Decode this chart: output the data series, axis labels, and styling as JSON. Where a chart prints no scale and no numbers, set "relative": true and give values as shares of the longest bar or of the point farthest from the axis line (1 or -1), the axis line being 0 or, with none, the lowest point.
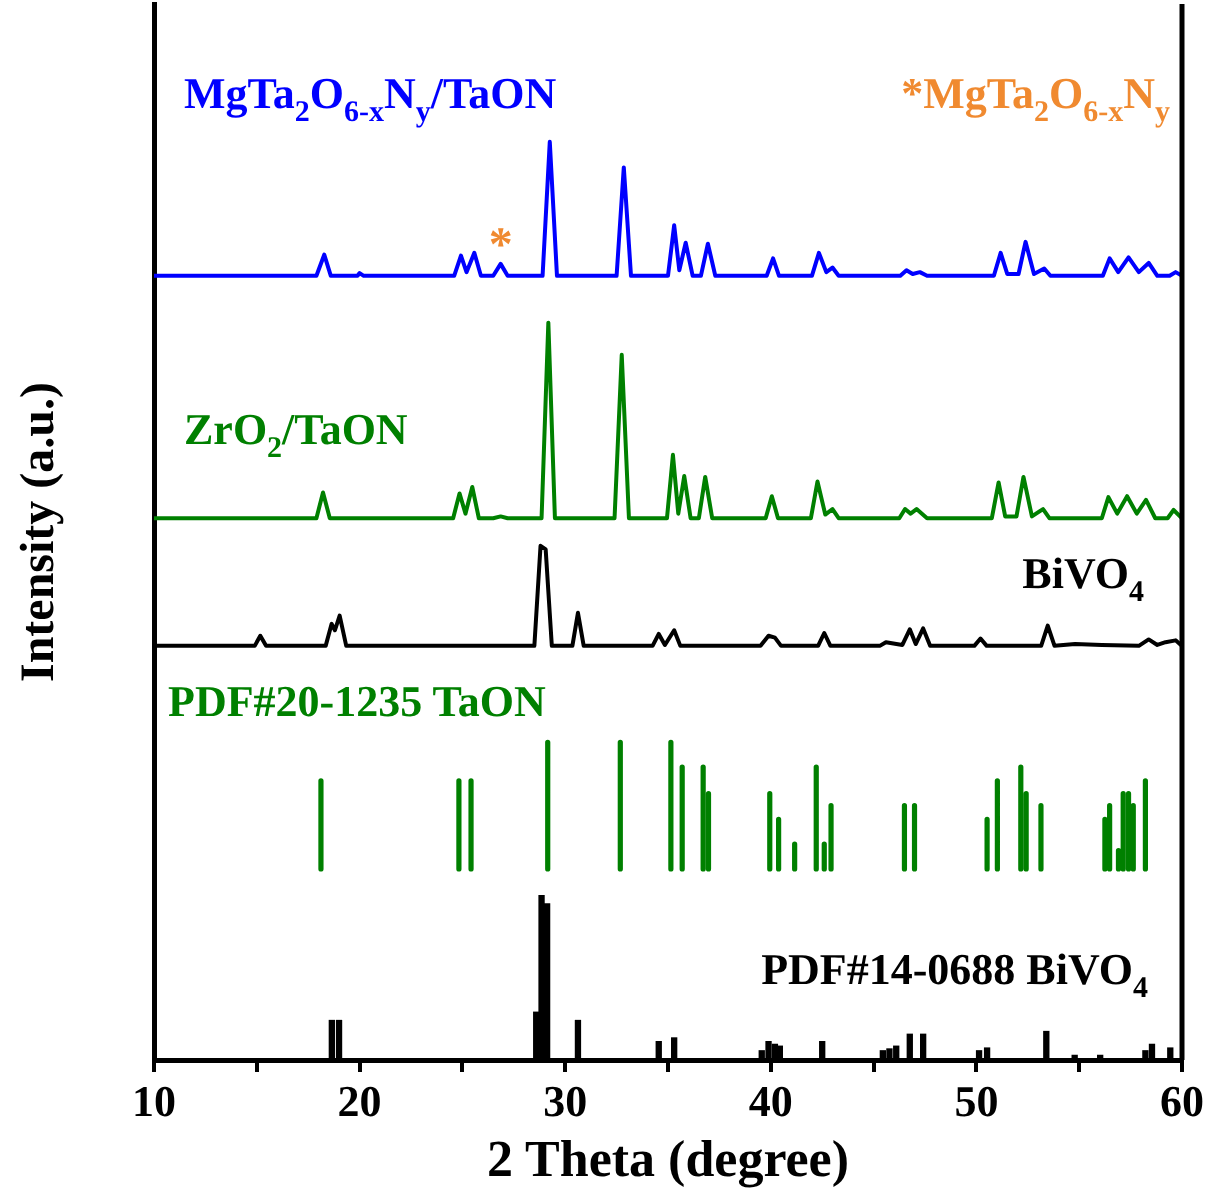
{
  "chart_data": {
    "type": "line",
    "relative": true,
    "xlabel": "2 Theta (degree)",
    "ylabel": "Intensity (a.u.)",
    "xlim": [
      10,
      60
    ],
    "xticks": [
      10,
      {
        "value": 15,
        "label": null
      },
      20,
      {
        "value": 25,
        "label": null
      },
      30,
      {
        "value": 35,
        "label": null
      },
      40,
      {
        "value": 45,
        "label": null
      },
      50,
      {
        "value": 55,
        "label": null
      },
      60
    ],
    "legend": false,
    "grid": false,
    "annotations": [
      {
        "text": "*",
        "x": 26.86,
        "y": 0.867
      },
      "*MgTa$_{2}$O$_{6-x}$N$_{y}$"
    ],
    "series": [
      {
        "name": "MgTa$_{2}$O$_{6-x}$N$_{y}$/TaON",
        "color": "#0000ff",
        "x": [
          10,
          17.9,
          18.28,
          18.6,
          19.9,
          20.0,
          20.2,
          24.6,
          24.93,
          25.2,
          25.58,
          25.9,
          26.5,
          26.86,
          27.2,
          28.9,
          29.25,
          29.6,
          32.5,
          32.85,
          33.2,
          35.0,
          35.3,
          35.55,
          35.86,
          36.2,
          36.6,
          36.94,
          37.3,
          39.8,
          40.11,
          40.4,
          42.0,
          42.34,
          42.7,
          43.0,
          43.3,
          46.3,
          46.6,
          46.9,
          47.25,
          47.6,
          50.85,
          51.18,
          51.5,
          52.05,
          52.39,
          52.8,
          53.3,
          53.6,
          56.15,
          56.48,
          56.9,
          57.4,
          57.9,
          58.38,
          58.8,
          59.4,
          59.69,
          60
        ],
        "values": [
          0.854,
          0.854,
          0.877,
          0.854,
          0.854,
          0.857,
          0.854,
          0.854,
          0.876,
          0.858,
          0.879,
          0.854,
          0.854,
          0.867,
          0.854,
          0.854,
          1,
          0.854,
          0.854,
          0.972,
          0.854,
          0.854,
          0.909,
          0.86,
          0.89,
          0.854,
          0.854,
          0.889,
          0.854,
          0.854,
          0.873,
          0.854,
          0.854,
          0.879,
          0.858,
          0.863,
          0.854,
          0.854,
          0.86,
          0.856,
          0.858,
          0.854,
          0.854,
          0.879,
          0.856,
          0.856,
          0.891,
          0.856,
          0.862,
          0.854,
          0.854,
          0.873,
          0.858,
          0.874,
          0.858,
          0.868,
          0.854,
          0.854,
          0.858,
          0.854
        ]
      },
      {
        "name": "ZrO$_{2}$/TaON",
        "color": "#008000",
        "x": [
          10,
          17.9,
          18.22,
          18.55,
          19.9,
          20.0,
          20.2,
          24.55,
          24.86,
          25.15,
          25.48,
          25.8,
          26.5,
          26.86,
          27.2,
          28.85,
          29.18,
          29.5,
          32.4,
          32.75,
          33.1,
          34.95,
          35.24,
          35.5,
          35.79,
          36.1,
          36.5,
          36.81,
          37.15,
          39.75,
          40.05,
          40.35,
          41.95,
          42.27,
          42.65,
          43.0,
          43.3,
          46.25,
          46.53,
          46.8,
          47.09,
          47.6,
          50.75,
          51.08,
          51.4,
          51.95,
          52.29,
          52.7,
          53.24,
          53.55,
          56.1,
          56.42,
          56.85,
          57.33,
          57.8,
          58.25,
          58.7,
          59.3,
          59.59,
          60
        ],
        "values": [
          0.59,
          0.59,
          0.618,
          0.59,
          0.59,
          0.59,
          0.59,
          0.59,
          0.617,
          0.595,
          0.624,
          0.59,
          0.59,
          0.592,
          0.59,
          0.59,
          0.803,
          0.59,
          0.59,
          0.768,
          0.59,
          0.59,
          0.659,
          0.595,
          0.636,
          0.59,
          0.59,
          0.635,
          0.59,
          0.59,
          0.614,
          0.59,
          0.59,
          0.63,
          0.594,
          0.6,
          0.59,
          0.59,
          0.6,
          0.595,
          0.6,
          0.59,
          0.59,
          0.629,
          0.592,
          0.592,
          0.635,
          0.592,
          0.6,
          0.59,
          0.59,
          0.613,
          0.595,
          0.614,
          0.595,
          0.61,
          0.59,
          0.59,
          0.599,
          0.59
        ]
      },
      {
        "name": "BiVO$_{4}$",
        "color": "#000000",
        "x": [
          10,
          14.9,
          15.17,
          15.45,
          18.35,
          18.64,
          18.8,
          19.03,
          19.35,
          28.5,
          28.8,
          29.05,
          29.35,
          30.35,
          30.62,
          30.9,
          34.25,
          34.55,
          34.85,
          35.3,
          35.6,
          39.5,
          39.89,
          40.2,
          40.5,
          42.3,
          42.6,
          42.9,
          45.3,
          45.6,
          46.4,
          46.76,
          47.05,
          47.41,
          47.75,
          49.9,
          50.2,
          50.5,
          53.15,
          53.47,
          53.8,
          54.8,
          56.1,
          57.9,
          58.38,
          58.8,
          59.2,
          59.69,
          60
        ],
        "values": [
          0.451,
          0.451,
          0.462,
          0.451,
          0.451,
          0.475,
          0.468,
          0.484,
          0.451,
          0.451,
          0.56,
          0.556,
          0.451,
          0.451,
          0.487,
          0.451,
          0.451,
          0.464,
          0.452,
          0.468,
          0.451,
          0.451,
          0.462,
          0.46,
          0.451,
          0.451,
          0.465,
          0.451,
          0.451,
          0.455,
          0.452,
          0.469,
          0.453,
          0.47,
          0.451,
          0.451,
          0.459,
          0.451,
          0.451,
          0.473,
          0.451,
          0.453,
          0.452,
          0.451,
          0.458,
          0.452,
          0.455,
          0.457,
          0.451
        ]
      },
      {
        "name": "PDF#20-1235 TaON",
        "color": "#008000",
        "x": [
          18.12,
          18.12,
          null,
          24.83,
          24.83,
          null,
          25.42,
          25.42,
          null,
          29.15,
          29.15,
          null,
          32.68,
          32.68,
          null,
          35.14,
          35.14,
          null,
          35.69,
          35.69,
          null,
          36.71,
          36.71,
          null,
          36.97,
          36.97,
          null,
          39.95,
          39.95,
          null,
          40.38,
          40.38,
          null,
          41.16,
          41.16,
          null,
          42.21,
          42.21,
          null,
          42.6,
          42.6,
          null,
          42.93,
          42.93,
          null,
          46.5,
          46.5,
          null,
          46.99,
          46.99,
          null,
          50.52,
          50.52,
          null,
          51.02,
          51.02,
          null,
          52.16,
          52.16,
          null,
          52.42,
          52.42,
          null,
          53.14,
          53.14,
          null,
          56.25,
          56.25,
          null,
          56.48,
          56.48,
          null,
          56.91,
          56.91,
          null,
          57.14,
          57.14,
          null,
          57.4,
          57.4,
          null,
          57.63,
          57.63,
          null,
          58.22,
          58.22
        ],
        "values": [
          0.208,
          0.304,
          null,
          0.208,
          0.304,
          null,
          0.208,
          0.304,
          null,
          0.208,
          0.346,
          null,
          0.208,
          0.346,
          null,
          0.208,
          0.346,
          null,
          0.208,
          0.319,
          null,
          0.208,
          0.319,
          null,
          0.208,
          0.29,
          null,
          0.208,
          0.29,
          null,
          0.208,
          0.262,
          null,
          0.208,
          0.235,
          null,
          0.208,
          0.319,
          null,
          0.208,
          0.235,
          null,
          0.208,
          0.277,
          null,
          0.208,
          0.277,
          null,
          0.208,
          0.277,
          null,
          0.208,
          0.262,
          null,
          0.208,
          0.304,
          null,
          0.208,
          0.319,
          null,
          0.208,
          0.29,
          null,
          0.208,
          0.277,
          null,
          0.208,
          0.262,
          null,
          0.208,
          0.277,
          null,
          0.208,
          0.228,
          null,
          0.208,
          0.29,
          null,
          0.208,
          0.29,
          null,
          0.208,
          0.277,
          null,
          0.208,
          0.304
        ]
      },
      {
        "name": "PDF#14-0688 BiVO$_{4}$",
        "type": "bar",
        "color": "#000000",
        "x": [
          18.65,
          19.0,
          28.59,
          28.85,
          29.12,
          30.62,
          34.55,
          35.3,
          39.56,
          39.89,
          40.2,
          40.44,
          42.5,
          45.45,
          45.77,
          46.1,
          46.76,
          47.41,
          50.13,
          50.52,
          53.4,
          54.78,
          56.02,
          58.22,
          58.54,
          59.43
        ],
        "values": [
          0.043,
          0.043,
          0.052,
          0.179,
          0.17,
          0.043,
          0.02,
          0.024,
          0.01,
          0.02,
          0.017,
          0.015,
          0.02,
          0.01,
          0.012,
          0.015,
          0.028,
          0.028,
          0.01,
          0.013,
          0.031,
          0.005,
          0.005,
          0.01,
          0.017,
          0.013
        ]
      }
    ]
  }
}
